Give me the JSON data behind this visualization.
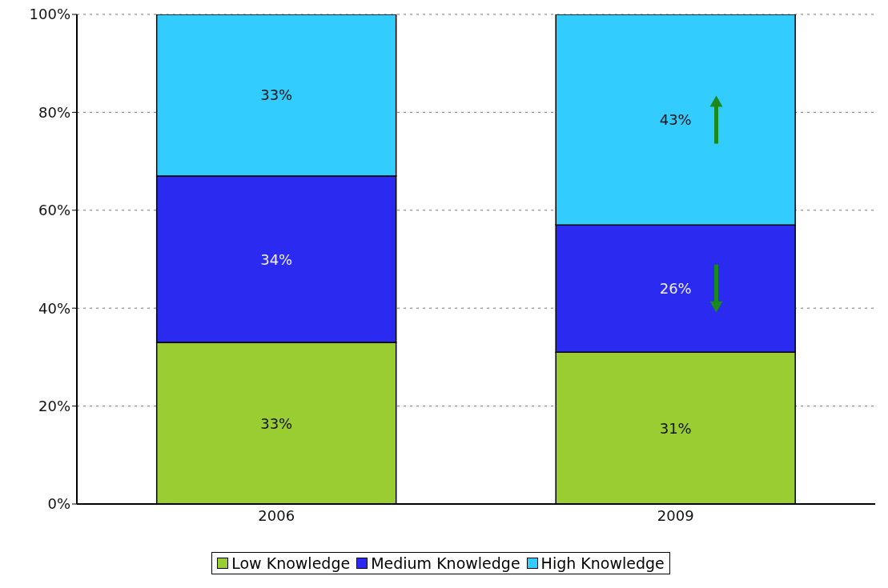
{
  "chart_data": {
    "type": "bar",
    "stacked": true,
    "categories": [
      "2006",
      "2009"
    ],
    "series": [
      {
        "name": "Low Knowledge",
        "color": "#9acd32",
        "values": [
          33,
          31
        ],
        "value_labels": [
          "33%",
          "31%"
        ]
      },
      {
        "name": "Medium Knowledge",
        "color": "#2a2af0",
        "values": [
          34,
          26
        ],
        "value_labels": [
          "34%",
          "26%"
        ]
      },
      {
        "name": "High Knowledge",
        "color": "#33ccff",
        "values": [
          33,
          43
        ],
        "value_labels": [
          "33%",
          "43%"
        ]
      }
    ],
    "ylim": [
      0,
      100
    ],
    "yticks": [
      {
        "value": 0,
        "label": "0%"
      },
      {
        "value": 20,
        "label": "20%"
      },
      {
        "value": 40,
        "label": "40%"
      },
      {
        "value": 60,
        "label": "60%"
      },
      {
        "value": 80,
        "label": "80%"
      },
      {
        "value": 100,
        "label": "100%"
      }
    ],
    "grid": "y",
    "legend": "bottom"
  }
}
